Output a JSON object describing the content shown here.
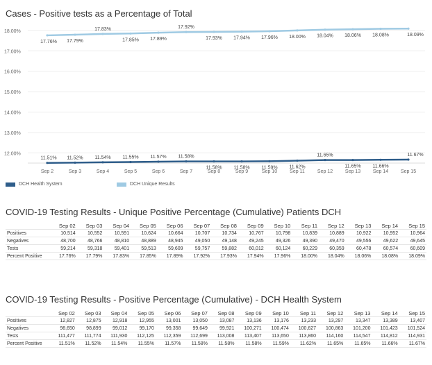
{
  "chart_title": "Cases - Positive tests as a Percentage of Total",
  "chart_data": {
    "type": "line",
    "categories": [
      "Sep 2",
      "Sep 3",
      "Sep 4",
      "Sep 5",
      "Sep 6",
      "Sep 7",
      "Sep 8",
      "Sep 9",
      "Sep 10",
      "Sep 11",
      "Sep 12",
      "Sep 13",
      "Sep 14",
      "Sep 15"
    ],
    "y_ticks": [
      "18.00%",
      "17.00%",
      "16.00%",
      "15.00%",
      "14.00%",
      "13.00%",
      "12.00%"
    ],
    "ylim": [
      11.5,
      18.2
    ],
    "grid": true,
    "legend_position": "bottom-left",
    "series": [
      {
        "name": "DCH Health System",
        "color": "#2e5d8a",
        "values": [
          11.51,
          11.52,
          11.54,
          11.55,
          11.57,
          11.58,
          11.58,
          11.58,
          11.59,
          11.62,
          11.65,
          11.65,
          11.66,
          11.67
        ],
        "labels": [
          "11.51%",
          "11.52%",
          "11.54%",
          "11.55%",
          "11.57%",
          "11.58%",
          "11.58%",
          "11.58%",
          "11.59%",
          "11.62%",
          "11.65%",
          "11.65%",
          "11.66%",
          "11.67%"
        ]
      },
      {
        "name": "DCH Unique Results",
        "color": "#9fcae3",
        "values": [
          17.76,
          17.79,
          17.83,
          17.85,
          17.89,
          17.92,
          17.93,
          17.94,
          17.96,
          18.0,
          18.04,
          18.06,
          18.08,
          18.09
        ],
        "labels": [
          "17.76%",
          "17.79%",
          "17.83%",
          "17.85%",
          "17.89%",
          "17.92%",
          "17.93%",
          "17.94%",
          "17.96%",
          "18.00%",
          "18.04%",
          "18.06%",
          "18.08%",
          "18.09%"
        ]
      }
    ]
  },
  "table1": {
    "title": "COVID-19 Testing Results - Unique Positive Percentage (Cumulative) Patients DCH",
    "columns": [
      "Sep 02",
      "Sep 03",
      "Sep 04",
      "Sep 05",
      "Sep 06",
      "Sep 07",
      "Sep 08",
      "Sep 09",
      "Sep 10",
      "Sep 11",
      "Sep 12",
      "Sep 13",
      "Sep 14",
      "Sep 15"
    ],
    "rows": [
      {
        "label": "Positives",
        "values": [
          "10,514",
          "10,552",
          "10,591",
          "10,624",
          "10,664",
          "10,707",
          "10,734",
          "10,767",
          "10,798",
          "10,839",
          "10,889",
          "10,922",
          "10,952",
          "10,964"
        ]
      },
      {
        "label": "Negatives",
        "values": [
          "48,700",
          "48,766",
          "48,810",
          "48,889",
          "48,945",
          "49,050",
          "49,148",
          "49,245",
          "49,326",
          "49,390",
          "49,470",
          "49,556",
          "49,622",
          "49,645"
        ]
      },
      {
        "label": "Tests",
        "values": [
          "59,214",
          "59,318",
          "59,401",
          "59,513",
          "59,609",
          "59,757",
          "59,882",
          "60,012",
          "60,124",
          "60,229",
          "60,359",
          "60,478",
          "60,574",
          "60,609"
        ]
      },
      {
        "label": "Percent Positive",
        "values": [
          "17.76%",
          "17.79%",
          "17.83%",
          "17.85%",
          "17.89%",
          "17.92%",
          "17.93%",
          "17.94%",
          "17.96%",
          "18.00%",
          "18.04%",
          "18.06%",
          "18.08%",
          "18.09%"
        ]
      }
    ]
  },
  "table2": {
    "title": "COVID-19 Testing Results - Positive Percentage (Cumulative) - DCH Health System",
    "columns": [
      "Sep 02",
      "Sep 03",
      "Sep 04",
      "Sep 05",
      "Sep 06",
      "Sep 07",
      "Sep 08",
      "Sep 09",
      "Sep 10",
      "Sep 11",
      "Sep 12",
      "Sep 13",
      "Sep 14",
      "Sep 15"
    ],
    "rows": [
      {
        "label": "Positives",
        "values": [
          "12,827",
          "12,875",
          "12,918",
          "12,955",
          "13,001",
          "13,050",
          "13,087",
          "13,136",
          "13,176",
          "13,233",
          "13,297",
          "13,347",
          "13,389",
          "13,407"
        ]
      },
      {
        "label": "Negatives",
        "values": [
          "98,650",
          "98,899",
          "99,012",
          "99,170",
          "99,358",
          "99,649",
          "99,921",
          "100,271",
          "100,474",
          "100,627",
          "100,863",
          "101,200",
          "101,423",
          "101,524"
        ]
      },
      {
        "label": "Tests",
        "values": [
          "111,477",
          "111,774",
          "111,930",
          "112,125",
          "112,359",
          "112,699",
          "113,008",
          "113,407",
          "113,650",
          "113,860",
          "114,160",
          "114,547",
          "114,812",
          "114,931"
        ]
      },
      {
        "label": "Percent Positive",
        "values": [
          "11.51%",
          "11.52%",
          "11.54%",
          "11.55%",
          "11.57%",
          "11.58%",
          "11.58%",
          "11.58%",
          "11.59%",
          "11.62%",
          "11.65%",
          "11.65%",
          "11.66%",
          "11.67%"
        ]
      }
    ]
  }
}
